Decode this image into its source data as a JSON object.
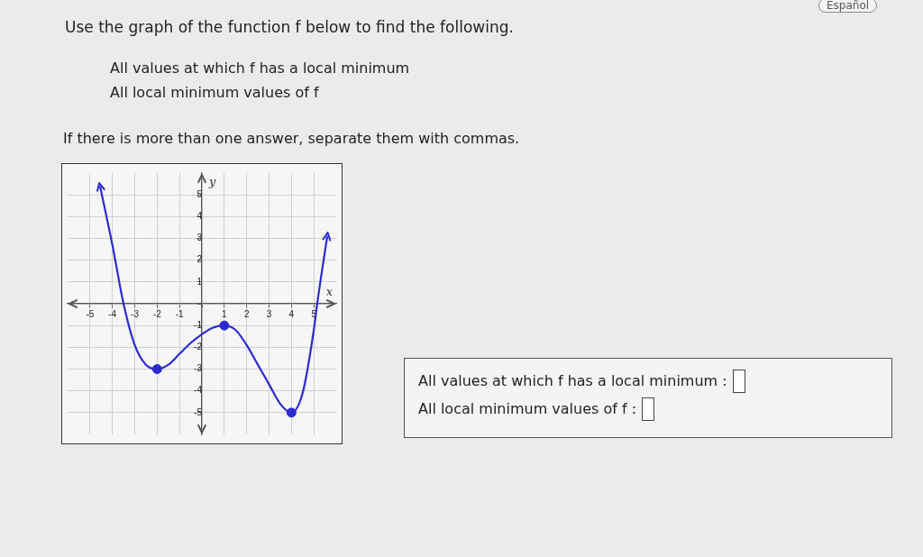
{
  "chart_data": {
    "type": "line",
    "title": "Use the graph of the function f below to find the following.",
    "xlabel": "x",
    "ylabel": "y",
    "xlim": [
      -6,
      6
    ],
    "ylim": [
      -6,
      6
    ],
    "xticks": [
      -5,
      -4,
      -3,
      -2,
      -1,
      {
        "value": 0,
        "label": null
      },
      1,
      2,
      3,
      4,
      5
    ],
    "yticks": [
      -5,
      -4,
      -3,
      -2,
      -1,
      {
        "value": 0,
        "label": null
      },
      1,
      2,
      3,
      4,
      5
    ],
    "grid": true,
    "legend": false,
    "series": [
      {
        "type": "line",
        "color": "#2b2bd0",
        "marker": "none",
        "x": [
          -4.55,
          -4,
          -3.5,
          -3,
          -2.5,
          -2,
          -1.5,
          -1,
          -0.5,
          0,
          0.5,
          1,
          1.5,
          2,
          2.5,
          3,
          3.5,
          4,
          4.5,
          5,
          5.15,
          5.6
        ],
        "values": [
          5.4,
          2.7,
          0,
          -1.9,
          -2.8,
          -3,
          -2.8,
          -2.3,
          -1.8,
          -1.4,
          -1.1,
          -1,
          -1.2,
          -1.9,
          -2.8,
          -3.7,
          -4.6,
          -5,
          -4.1,
          -1.2,
          0,
          3.1
        ]
      },
      {
        "type": "scatter",
        "color": "#2b2bd0",
        "marker": "circle",
        "x": [
          -2,
          1,
          4
        ],
        "values": [
          -3,
          -1,
          -5
        ]
      }
    ],
    "annotations": [
      "All values at which f has a local minimum",
      "All local minimum values of f",
      "If there is more than one answer, separate them with commas.",
      "All values at which f has a local minimum :",
      "All local minimum values of f :",
      "Español"
    ]
  }
}
